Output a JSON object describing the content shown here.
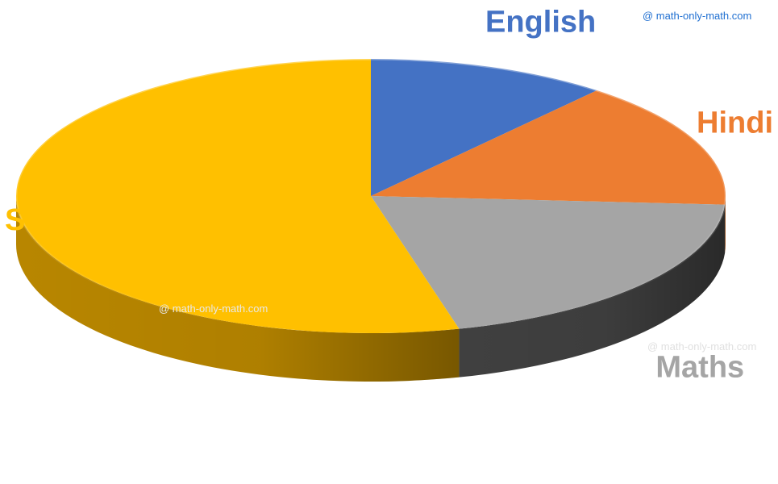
{
  "watermarks": [
    {
      "text": "@ math-only-math.com",
      "color": "#1f6fd1"
    },
    {
      "text": "@ math-only-math.com",
      "color": "#e8e8e8"
    },
    {
      "text": "@ math-only-math.com",
      "color": "#e0e0e0"
    }
  ],
  "chart_data": {
    "type": "pie",
    "style": "3d",
    "start": "top",
    "direction": "clockwise",
    "categories": [
      "English",
      "Hindi",
      "Maths",
      "Science"
    ],
    "values": [
      11,
      15,
      20,
      54
    ],
    "colors": [
      "#4472c4",
      "#ed7d31",
      "#a5a5a5",
      "#ffc000"
    ],
    "side_colors": [
      "#2f5597",
      "#b45a1a",
      "#404040",
      "#b88600"
    ],
    "label_colors": [
      "#4472c4",
      "#ed7d31",
      "#a5a5a5",
      "#ffc000"
    ],
    "legend": "none",
    "data_labels": "category"
  }
}
